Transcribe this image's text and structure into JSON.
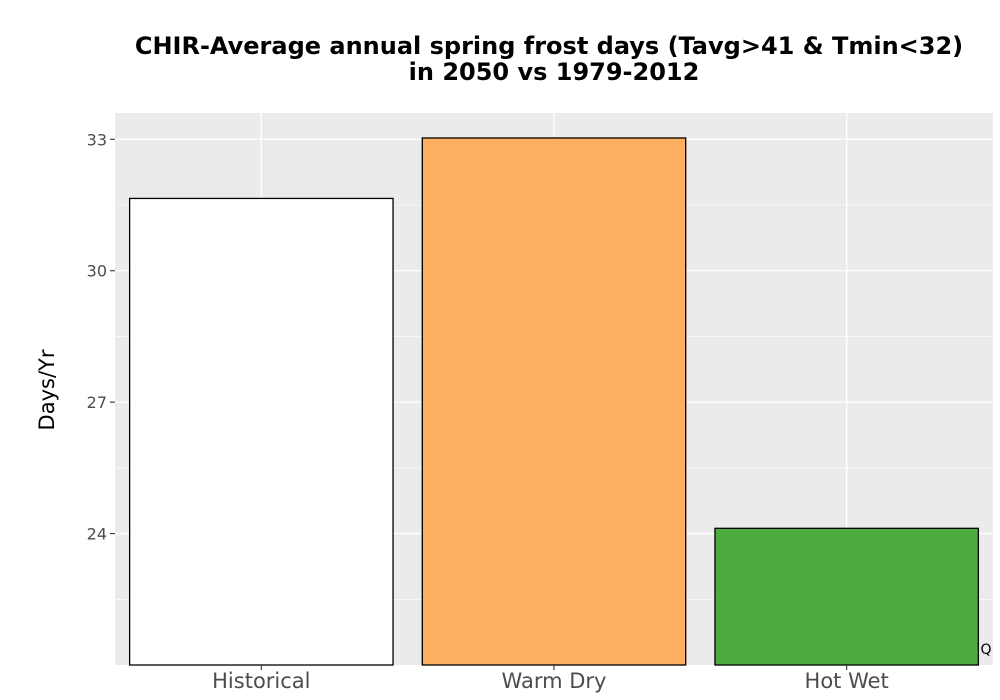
{
  "chart_data": {
    "type": "bar",
    "title": "CHIR-Average annual spring frost days (Tavg>41 & Tmin<32)",
    "subtitle": "in 2050 vs 1979-2012",
    "xlabel": "",
    "ylabel": "Days/Yr",
    "categories": [
      "Historical",
      "Warm Dry",
      "Hot Wet"
    ],
    "values": [
      31.65,
      33.03,
      24.12
    ],
    "colors": [
      "#ffffff",
      "#fdae61",
      "#4daa3e"
    ],
    "bar_outline": "#000000",
    "ylim": [
      21.0,
      33.6
    ],
    "yticks": [
      24,
      27,
      30,
      33
    ],
    "ytick_labels": [
      "24",
      "27",
      "30",
      "33"
    ],
    "grid": true,
    "panel_background": "#ebebeb",
    "grid_color": "#ffffff",
    "corner_mark": "Q"
  }
}
